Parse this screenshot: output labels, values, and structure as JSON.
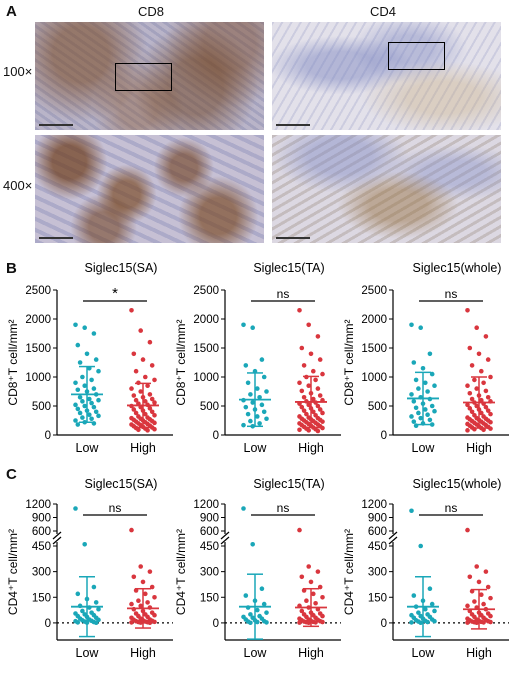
{
  "panel_a": {
    "letter": "A",
    "columns": [
      "CD8",
      "CD4"
    ],
    "rows": [
      "100×",
      "400×"
    ]
  },
  "panel_b": {
    "letter": "B"
  },
  "panel_c": {
    "letter": "C"
  },
  "colors": {
    "low": "#1aa7b8",
    "high": "#d9363e",
    "bar": "#222222"
  },
  "chart_data": [
    {
      "panel": "B",
      "type": "scatter",
      "title": "Siglec15(SA)",
      "ylabel": "CD8⁺T cell/mm²",
      "categories": [
        "Low",
        "High"
      ],
      "ylim": [
        0,
        2500
      ],
      "yticks": [
        0,
        500,
        1000,
        1500,
        2000,
        2500
      ],
      "significance": "*",
      "low": {
        "mean": 700,
        "sd": 480,
        "values": [
          1900,
          1850,
          1750,
          1550,
          1400,
          1300,
          1250,
          1150,
          1100,
          1000,
          950,
          900,
          850,
          800,
          780,
          750,
          700,
          650,
          620,
          600,
          580,
          550,
          520,
          500,
          480,
          450,
          420,
          400,
          380,
          350,
          330,
          300,
          280,
          250,
          220,
          200,
          180
        ]
      },
      "high": {
        "mean": 510,
        "sd": 380,
        "values": [
          2150,
          1800,
          1600,
          1400,
          1300,
          1200,
          1100,
          1000,
          950,
          900,
          850,
          800,
          750,
          700,
          680,
          650,
          620,
          600,
          580,
          560,
          540,
          520,
          500,
          480,
          460,
          440,
          420,
          400,
          380,
          360,
          340,
          320,
          300,
          290,
          280,
          270,
          260,
          250,
          240,
          230,
          220,
          210,
          200,
          190,
          180,
          170,
          160,
          150,
          140,
          130,
          120,
          110,
          100,
          90,
          80
        ]
      }
    },
    {
      "panel": "B",
      "type": "scatter",
      "title": "Siglec15(TA)",
      "ylabel": "CD8⁺T cell/mm²",
      "categories": [
        "Low",
        "High"
      ],
      "ylim": [
        0,
        2500
      ],
      "yticks": [
        0,
        500,
        1000,
        1500,
        2000,
        2500
      ],
      "significance": "ns",
      "low": {
        "mean": 610,
        "sd": 460,
        "values": [
          1900,
          1850,
          1300,
          1200,
          1100,
          1000,
          900,
          800,
          750,
          700,
          650,
          600,
          560,
          520,
          480,
          440,
          400,
          360,
          320,
          280,
          240,
          200,
          170,
          150
        ]
      },
      "high": {
        "mean": 570,
        "sd": 440,
        "values": [
          2150,
          1900,
          1700,
          1500,
          1400,
          1300,
          1200,
          1100,
          1050,
          1000,
          950,
          900,
          850,
          800,
          760,
          720,
          680,
          650,
          620,
          600,
          580,
          560,
          540,
          520,
          500,
          480,
          460,
          440,
          420,
          400,
          380,
          360,
          340,
          320,
          300,
          290,
          280,
          270,
          260,
          250,
          240,
          230,
          220,
          210,
          200,
          190,
          180,
          170,
          160,
          150,
          140,
          130,
          120,
          110,
          100,
          90,
          80,
          70
        ]
      }
    },
    {
      "panel": "B",
      "type": "scatter",
      "title": "Siglec15(whole)",
      "ylabel": "CD8⁺T cell/mm²",
      "categories": [
        "Low",
        "High"
      ],
      "ylim": [
        0,
        2500
      ],
      "yticks": [
        0,
        500,
        1000,
        1500,
        2000,
        2500
      ],
      "significance": "ns",
      "low": {
        "mean": 630,
        "sd": 450,
        "values": [
          1900,
          1850,
          1400,
          1250,
          1150,
          1050,
          950,
          900,
          850,
          800,
          750,
          700,
          650,
          620,
          580,
          540,
          500,
          470,
          440,
          410,
          380,
          350,
          320,
          290,
          260,
          230,
          200,
          180,
          160
        ]
      },
      "high": {
        "mean": 560,
        "sd": 440,
        "values": [
          2150,
          1850,
          1700,
          1500,
          1400,
          1300,
          1200,
          1100,
          1000,
          950,
          900,
          850,
          800,
          760,
          720,
          680,
          650,
          620,
          600,
          580,
          560,
          540,
          520,
          500,
          480,
          460,
          440,
          420,
          400,
          380,
          360,
          340,
          320,
          300,
          290,
          280,
          270,
          260,
          250,
          240,
          230,
          220,
          210,
          200,
          190,
          180,
          170,
          160,
          150,
          140,
          130,
          120,
          110,
          100,
          90,
          80
        ]
      }
    },
    {
      "panel": "C",
      "type": "scatter",
      "title": "Siglec15(SA)",
      "ylabel": "CD4⁺T cell/mm²",
      "categories": [
        "Low",
        "High"
      ],
      "axis_break": true,
      "yticks_lower": [
        0,
        150,
        300,
        450
      ],
      "yticks_upper": [
        600,
        900,
        1200
      ],
      "ylim": [
        -100,
        1200
      ],
      "reference_line": 0,
      "significance": "ns",
      "low": {
        "mean": 95,
        "sd": 175,
        "values": [
          1100,
          460,
          210,
          170,
          140,
          120,
          100,
          90,
          80,
          70,
          60,
          55,
          50,
          45,
          40,
          35,
          30,
          25,
          20,
          18,
          15,
          12,
          10,
          8,
          5,
          3,
          2,
          1
        ]
      },
      "high": {
        "mean": 85,
        "sd": 115,
        "values": [
          620,
          330,
          300,
          270,
          240,
          210,
          190,
          170,
          150,
          130,
          120,
          110,
          100,
          90,
          80,
          70,
          60,
          55,
          50,
          45,
          40,
          35,
          30,
          25,
          20,
          18,
          15,
          12,
          10,
          8,
          6,
          5,
          4,
          3,
          2,
          1
        ]
      }
    },
    {
      "panel": "C",
      "type": "scatter",
      "title": "Siglec15(TA)",
      "ylabel": "CD4⁺T cell/mm²",
      "categories": [
        "Low",
        "High"
      ],
      "axis_break": true,
      "yticks_lower": [
        0,
        150,
        300,
        450
      ],
      "yticks_upper": [
        600,
        900,
        1200
      ],
      "ylim": [
        -100,
        1200
      ],
      "reference_line": 0,
      "significance": "ns",
      "low": {
        "mean": 95,
        "sd": 190,
        "values": [
          1100,
          460,
          200,
          160,
          130,
          110,
          90,
          75,
          60,
          50,
          40,
          35,
          30,
          25,
          20,
          15,
          10,
          8,
          5,
          3,
          1
        ]
      },
      "high": {
        "mean": 90,
        "sd": 110,
        "values": [
          620,
          330,
          300,
          270,
          240,
          210,
          190,
          170,
          150,
          130,
          115,
          100,
          90,
          80,
          70,
          60,
          55,
          50,
          45,
          40,
          35,
          30,
          25,
          20,
          18,
          15,
          12,
          10,
          8,
          6,
          5,
          4,
          3,
          2,
          1
        ]
      }
    },
    {
      "panel": "C",
      "type": "scatter",
      "title": "Siglec15(whole)",
      "ylabel": "CD4⁺T cell/mm²",
      "categories": [
        "Low",
        "High"
      ],
      "axis_break": true,
      "yticks_lower": [
        0,
        150,
        300,
        450
      ],
      "yticks_upper": [
        600,
        900,
        1200
      ],
      "ylim": [
        -100,
        1200
      ],
      "reference_line": 0,
      "significance": "ns",
      "low": {
        "mean": 95,
        "sd": 175,
        "values": [
          1050,
          450,
          200,
          160,
          130,
          110,
          95,
          80,
          70,
          60,
          50,
          45,
          40,
          35,
          30,
          25,
          20,
          15,
          12,
          10,
          8,
          5,
          3,
          1
        ]
      },
      "high": {
        "mean": 80,
        "sd": 115,
        "values": [
          620,
          330,
          300,
          270,
          240,
          210,
          185,
          165,
          145,
          125,
          110,
          100,
          90,
          80,
          70,
          60,
          55,
          50,
          45,
          40,
          35,
          30,
          25,
          20,
          18,
          15,
          12,
          10,
          8,
          6,
          5,
          4,
          3,
          2,
          1
        ]
      }
    }
  ]
}
